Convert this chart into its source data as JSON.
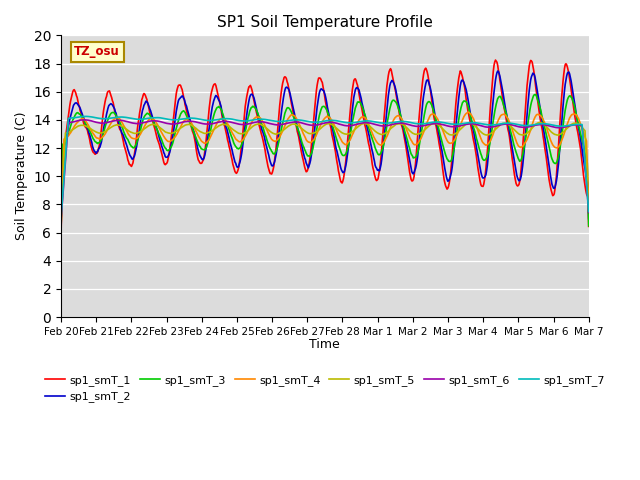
{
  "title": "SP1 Soil Temperature Profile",
  "xlabel": "Time",
  "ylabel": "Soil Temperature (C)",
  "ylim": [
    0,
    20
  ],
  "yticks": [
    0,
    2,
    4,
    6,
    8,
    10,
    12,
    14,
    16,
    18,
    20
  ],
  "bg_color": "#dcdcdc",
  "fig_color": "#ffffff",
  "tz_label": "TZ_osu",
  "legend": [
    "sp1_smT_1",
    "sp1_smT_2",
    "sp1_smT_3",
    "sp1_smT_4",
    "sp1_smT_5",
    "sp1_smT_6",
    "sp1_smT_7"
  ],
  "colors": [
    "#ff0000",
    "#0000cc",
    "#00cc00",
    "#ff8800",
    "#bbbb00",
    "#9900aa",
    "#00bbbb"
  ],
  "linewidth": 1.2
}
